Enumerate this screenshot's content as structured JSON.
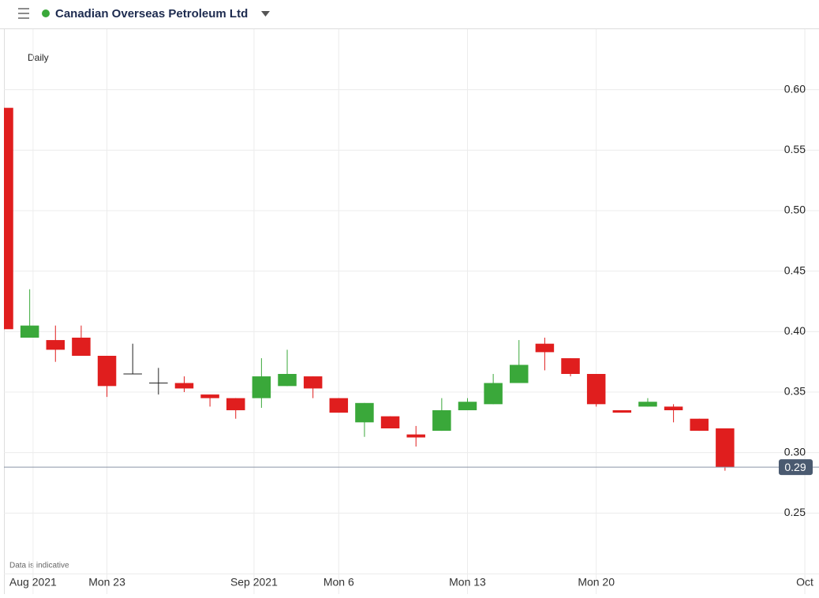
{
  "header": {
    "instrument": "Canadian Overseas Petroleum Ltd"
  },
  "footnote": "Data is indicative",
  "chart_data": {
    "type": "candlestick",
    "interval": "Daily",
    "x": [
      0,
      1,
      2,
      3,
      4,
      5,
      6,
      7,
      8,
      9,
      10,
      11,
      12,
      13,
      14,
      15,
      16,
      17,
      18,
      19,
      20,
      21,
      22,
      23,
      24,
      25,
      26,
      27,
      28
    ],
    "open": [
      0.585,
      0.395,
      0.393,
      0.395,
      0.38,
      0.365,
      0.3575,
      0.3575,
      0.348,
      0.345,
      0.345,
      0.355,
      0.363,
      0.345,
      0.325,
      0.33,
      0.315,
      0.318,
      0.335,
      0.34,
      0.3575,
      0.39,
      0.378,
      0.365,
      0.335,
      0.338,
      0.338,
      0.328,
      0.32
    ],
    "high": [
      0.585,
      0.435,
      0.405,
      0.405,
      0.38,
      0.39,
      0.37,
      0.363,
      0.348,
      0.345,
      0.378,
      0.385,
      0.363,
      0.345,
      0.341,
      0.33,
      0.322,
      0.345,
      0.345,
      0.365,
      0.393,
      0.395,
      0.378,
      0.365,
      0.335,
      0.345,
      0.34,
      0.328,
      0.32
    ],
    "low": [
      0.402,
      0.395,
      0.375,
      0.38,
      0.346,
      0.365,
      0.348,
      0.35,
      0.338,
      0.328,
      0.337,
      0.355,
      0.345,
      0.333,
      0.313,
      0.32,
      0.305,
      0.318,
      0.335,
      0.34,
      0.3575,
      0.368,
      0.363,
      0.338,
      0.333,
      0.338,
      0.325,
      0.318,
      0.285
    ],
    "close": [
      0.402,
      0.405,
      0.385,
      0.38,
      0.355,
      0.365,
      0.3575,
      0.353,
      0.345,
      0.335,
      0.363,
      0.365,
      0.353,
      0.333,
      0.341,
      0.32,
      0.3125,
      0.335,
      0.342,
      0.3575,
      0.3725,
      0.383,
      0.365,
      0.34,
      0.333,
      0.342,
      0.335,
      0.318,
      0.288
    ],
    "up_color": "#3aa83a",
    "down_color": "#e01e1e",
    "last": {
      "value": 0.288,
      "label": "0.29"
    },
    "xlim": [
      0,
      31.65
    ],
    "xticks": [
      {
        "value": 1.13,
        "label": "Aug 2021"
      },
      {
        "value": 4,
        "label": "Mon 23"
      },
      {
        "value": 9.71,
        "label": "Sep 2021"
      },
      {
        "value": 13,
        "label": "Mon 6"
      },
      {
        "value": 18,
        "label": "Mon 13"
      },
      {
        "value": 23,
        "label": "Mon 20"
      },
      {
        "value": 31.1,
        "label": "Oct"
      }
    ],
    "ylim": [
      0.2,
      0.65
    ],
    "yticks": [
      {
        "value": 0.25,
        "label": "0.25"
      },
      {
        "value": 0.3,
        "label": "0.30"
      },
      {
        "value": 0.35,
        "label": "0.35"
      },
      {
        "value": 0.4,
        "label": "0.40"
      },
      {
        "value": 0.45,
        "label": "0.45"
      },
      {
        "value": 0.5,
        "label": "0.50"
      },
      {
        "value": 0.55,
        "label": "0.55"
      },
      {
        "value": 0.6,
        "label": "0.60"
      }
    ],
    "grid": true
  }
}
